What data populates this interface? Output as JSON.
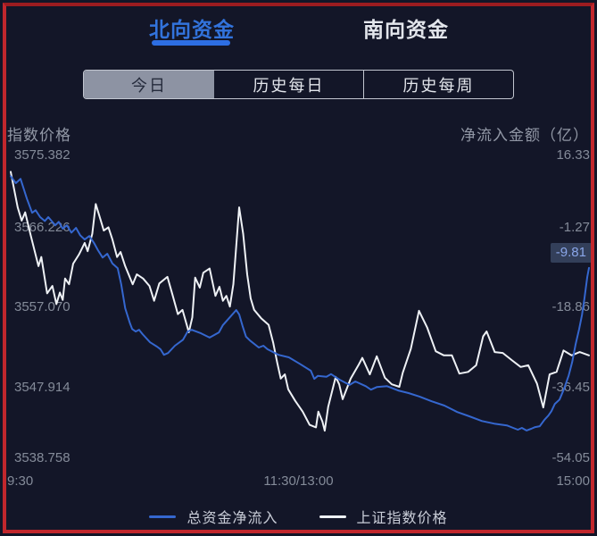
{
  "frame": {
    "border_color": "#c1272d"
  },
  "tabs": [
    {
      "label": "北向资金",
      "active": true
    },
    {
      "label": "南向资金",
      "active": false
    }
  ],
  "subtabs": [
    {
      "label": "今日",
      "selected": true
    },
    {
      "label": "历史每日",
      "selected": false
    },
    {
      "label": "历史每周",
      "selected": false
    }
  ],
  "axes": {
    "left": {
      "title": "指数价格",
      "ticks": [
        "3575.382",
        "3566.226",
        "3557.070",
        "3547.914",
        "3538.758"
      ]
    },
    "right": {
      "title": "净流入金额（亿）",
      "ticks": [
        "16.33",
        "-1.27",
        "-18.86",
        "-36.45",
        "-54.05"
      ],
      "current_badge": "-9.81"
    },
    "x": {
      "labels": [
        "9:30",
        "11:30/13:00",
        "15:00"
      ]
    }
  },
  "legend": [
    {
      "label": "总资金净流入",
      "color": "#3567cf"
    },
    {
      "label": "上证指数价格",
      "color": "#eef1f5"
    }
  ],
  "chart_data": {
    "type": "line",
    "title": "北向资金 今日",
    "x_axis": {
      "labels": [
        "9:30",
        "11:30/13:00",
        "15:00"
      ],
      "note": "t is fraction of trading session 9:30-15:00"
    },
    "legend_position": "bottom",
    "grid": false,
    "series": [
      {
        "name": "上证指数价格",
        "axis": "left",
        "color": "#eef1f5",
        "width": 2,
        "ylim": [
          3538.758,
          3575.382
        ],
        "points": [
          [
            0.0,
            3573.4
          ],
          [
            0.012,
            3569.1
          ],
          [
            0.019,
            3567.5
          ],
          [
            0.025,
            3568.5
          ],
          [
            0.034,
            3565.9
          ],
          [
            0.048,
            3562.0
          ],
          [
            0.053,
            3563.1
          ],
          [
            0.063,
            3558.7
          ],
          [
            0.072,
            3559.6
          ],
          [
            0.079,
            3557.4
          ],
          [
            0.085,
            3558.8
          ],
          [
            0.09,
            3557.9
          ],
          [
            0.094,
            3560.5
          ],
          [
            0.101,
            3559.8
          ],
          [
            0.108,
            3562.3
          ],
          [
            0.118,
            3563.4
          ],
          [
            0.128,
            3564.8
          ],
          [
            0.133,
            3563.8
          ],
          [
            0.141,
            3565.9
          ],
          [
            0.147,
            3569.5
          ],
          [
            0.155,
            3567.7
          ],
          [
            0.161,
            3566.3
          ],
          [
            0.169,
            3566.7
          ],
          [
            0.176,
            3565.2
          ],
          [
            0.184,
            3563.1
          ],
          [
            0.19,
            3563.7
          ],
          [
            0.198,
            3562.0
          ],
          [
            0.211,
            3559.8
          ],
          [
            0.218,
            3561.0
          ],
          [
            0.229,
            3560.5
          ],
          [
            0.24,
            3559.6
          ],
          [
            0.248,
            3557.8
          ],
          [
            0.257,
            3559.9
          ],
          [
            0.271,
            3560.7
          ],
          [
            0.28,
            3558.5
          ],
          [
            0.289,
            3556.2
          ],
          [
            0.297,
            3556.7
          ],
          [
            0.308,
            3554.0
          ],
          [
            0.314,
            3555.8
          ],
          [
            0.319,
            3560.6
          ],
          [
            0.327,
            3559.4
          ],
          [
            0.333,
            3561.2
          ],
          [
            0.344,
            3561.7
          ],
          [
            0.354,
            3558.4
          ],
          [
            0.361,
            3559.5
          ],
          [
            0.367,
            3557.8
          ],
          [
            0.373,
            3558.4
          ],
          [
            0.379,
            3557.1
          ],
          [
            0.385,
            3559.8
          ],
          [
            0.395,
            3569.1
          ],
          [
            0.402,
            3565.9
          ],
          [
            0.409,
            3561.0
          ],
          [
            0.415,
            3558.1
          ],
          [
            0.421,
            3556.7
          ],
          [
            0.433,
            3555.7
          ],
          [
            0.446,
            3554.9
          ],
          [
            0.454,
            3552.7
          ],
          [
            0.461,
            3550.3
          ],
          [
            0.467,
            3548.4
          ],
          [
            0.474,
            3548.9
          ],
          [
            0.48,
            3547.1
          ],
          [
            0.492,
            3545.7
          ],
          [
            0.505,
            3544.4
          ],
          [
            0.517,
            3542.8
          ],
          [
            0.528,
            3542.5
          ],
          [
            0.532,
            3544.4
          ],
          [
            0.539,
            3543.2
          ],
          [
            0.543,
            3542.1
          ],
          [
            0.549,
            3545.0
          ],
          [
            0.562,
            3548.6
          ],
          [
            0.568,
            3547.7
          ],
          [
            0.574,
            3545.9
          ],
          [
            0.588,
            3548.4
          ],
          [
            0.602,
            3550.1
          ],
          [
            0.608,
            3550.9
          ],
          [
            0.621,
            3548.9
          ],
          [
            0.633,
            3551.1
          ],
          [
            0.647,
            3548.5
          ],
          [
            0.659,
            3547.7
          ],
          [
            0.672,
            3547.4
          ],
          [
            0.678,
            3549.1
          ],
          [
            0.692,
            3552.0
          ],
          [
            0.706,
            3556.6
          ],
          [
            0.72,
            3554.6
          ],
          [
            0.735,
            3551.7
          ],
          [
            0.749,
            3551.2
          ],
          [
            0.763,
            3551.2
          ],
          [
            0.776,
            3549.0
          ],
          [
            0.791,
            3549.2
          ],
          [
            0.805,
            3550.0
          ],
          [
            0.817,
            3553.5
          ],
          [
            0.823,
            3554.1
          ],
          [
            0.837,
            3551.6
          ],
          [
            0.851,
            3551.5
          ],
          [
            0.867,
            3550.6
          ],
          [
            0.882,
            3549.8
          ],
          [
            0.895,
            3550.0
          ],
          [
            0.91,
            3547.8
          ],
          [
            0.921,
            3544.9
          ],
          [
            0.932,
            3548.9
          ],
          [
            0.944,
            3549.2
          ],
          [
            0.956,
            3551.8
          ],
          [
            0.97,
            3551.2
          ],
          [
            0.984,
            3551.6
          ],
          [
            1.0,
            3551.2
          ]
        ]
      },
      {
        "name": "总资金净流入",
        "axis": "right",
        "color": "#3567cf",
        "width": 2,
        "ylim": [
          -54.05,
          16.33
        ],
        "last_value": -9.81,
        "points": [
          [
            0.0,
            11.5
          ],
          [
            0.009,
            9.9
          ],
          [
            0.017,
            10.9
          ],
          [
            0.028,
            6.3
          ],
          [
            0.037,
            3.0
          ],
          [
            0.043,
            3.6
          ],
          [
            0.051,
            2.0
          ],
          [
            0.059,
            1.1
          ],
          [
            0.065,
            2.0
          ],
          [
            0.077,
            0.1
          ],
          [
            0.083,
            0.9
          ],
          [
            0.09,
            -0.7
          ],
          [
            0.097,
            0.1
          ],
          [
            0.105,
            -1.6
          ],
          [
            0.113,
            -0.5
          ],
          [
            0.12,
            -2.2
          ],
          [
            0.128,
            -3.2
          ],
          [
            0.136,
            -2.4
          ],
          [
            0.144,
            -4.0
          ],
          [
            0.151,
            -5.7
          ],
          [
            0.159,
            -7.4
          ],
          [
            0.167,
            -6.5
          ],
          [
            0.176,
            -8.8
          ],
          [
            0.185,
            -9.9
          ],
          [
            0.191,
            -13.6
          ],
          [
            0.198,
            -19.2
          ],
          [
            0.206,
            -22.6
          ],
          [
            0.21,
            -24.0
          ],
          [
            0.216,
            -24.6
          ],
          [
            0.222,
            -24.2
          ],
          [
            0.228,
            -25.2
          ],
          [
            0.241,
            -27.1
          ],
          [
            0.253,
            -28.1
          ],
          [
            0.259,
            -28.7
          ],
          [
            0.265,
            -30.0
          ],
          [
            0.272,
            -29.6
          ],
          [
            0.284,
            -27.9
          ],
          [
            0.298,
            -26.5
          ],
          [
            0.306,
            -24.6
          ],
          [
            0.313,
            -24.2
          ],
          [
            0.329,
            -25.0
          ],
          [
            0.344,
            -26.0
          ],
          [
            0.352,
            -25.4
          ],
          [
            0.36,
            -24.8
          ],
          [
            0.367,
            -23.1
          ],
          [
            0.375,
            -21.9
          ],
          [
            0.39,
            -19.6
          ],
          [
            0.395,
            -20.6
          ],
          [
            0.401,
            -23.3
          ],
          [
            0.407,
            -25.8
          ],
          [
            0.414,
            -26.7
          ],
          [
            0.429,
            -28.3
          ],
          [
            0.437,
            -27.9
          ],
          [
            0.444,
            -28.7
          ],
          [
            0.463,
            -30.0
          ],
          [
            0.481,
            -30.6
          ],
          [
            0.5,
            -32.1
          ],
          [
            0.519,
            -33.7
          ],
          [
            0.525,
            -35.6
          ],
          [
            0.531,
            -34.9
          ],
          [
            0.546,
            -35.1
          ],
          [
            0.554,
            -34.5
          ],
          [
            0.569,
            -35.8
          ],
          [
            0.586,
            -37.0
          ],
          [
            0.596,
            -36.2
          ],
          [
            0.614,
            -37.3
          ],
          [
            0.623,
            -38.1
          ],
          [
            0.633,
            -37.5
          ],
          [
            0.651,
            -37.3
          ],
          [
            0.67,
            -38.3
          ],
          [
            0.688,
            -38.9
          ],
          [
            0.707,
            -39.7
          ],
          [
            0.728,
            -40.8
          ],
          [
            0.75,
            -41.8
          ],
          [
            0.772,
            -43.3
          ],
          [
            0.793,
            -44.3
          ],
          [
            0.815,
            -45.4
          ],
          [
            0.836,
            -46.0
          ],
          [
            0.858,
            -46.4
          ],
          [
            0.869,
            -47.0
          ],
          [
            0.877,
            -47.4
          ],
          [
            0.884,
            -47.0
          ],
          [
            0.892,
            -47.6
          ],
          [
            0.9,
            -47.2
          ],
          [
            0.907,
            -46.8
          ],
          [
            0.915,
            -46.6
          ],
          [
            0.923,
            -45.1
          ],
          [
            0.93,
            -44.1
          ],
          [
            0.935,
            -43.1
          ],
          [
            0.941,
            -41.4
          ],
          [
            0.949,
            -40.4
          ],
          [
            0.957,
            -37.9
          ],
          [
            0.965,
            -34.8
          ],
          [
            0.971,
            -31.7
          ],
          [
            0.977,
            -27.5
          ],
          [
            0.983,
            -24.0
          ],
          [
            0.988,
            -20.7
          ],
          [
            0.992,
            -17.1
          ],
          [
            0.997,
            -11.9
          ],
          [
            1.0,
            -9.8
          ]
        ]
      }
    ]
  }
}
